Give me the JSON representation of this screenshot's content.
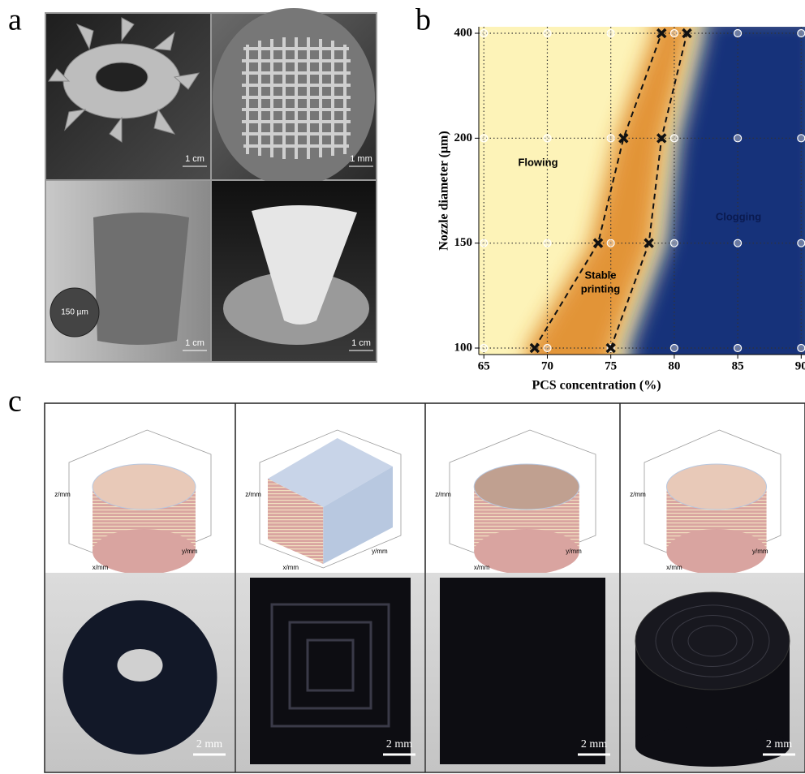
{
  "panel_labels": [
    "a",
    "b",
    "c"
  ],
  "panel_a": {
    "scale_bars": [
      "1 cm",
      "1 mm",
      "1 cm",
      "1 cm"
    ],
    "inset_label": "150 µm"
  },
  "chart_data": {
    "type": "line",
    "xlabel": "PCS concentration (%)",
    "ylabel": "Nozzle diameter (μm)",
    "xlim": [
      64.6,
      90.3
    ],
    "xticks": [
      65,
      70,
      75,
      80,
      85,
      90
    ],
    "y_categories": [
      100,
      150,
      200,
      400
    ],
    "grid": true,
    "annotations": {
      "flowing": "Flowing",
      "stable": [
        "Stable",
        "printing"
      ],
      "clogging": "Clogging"
    },
    "series": [
      {
        "color": "#111111",
        "x": [
          69,
          74,
          76,
          79
        ],
        "values": [
          100,
          150,
          200,
          400
        ]
      },
      {
        "color": "#111111",
        "x": [
          75,
          78,
          79,
          81
        ],
        "values": [
          100,
          150,
          200,
          400
        ]
      }
    ]
  },
  "panel_c": {
    "axis_labels": [
      "x/mm",
      "y/mm",
      "z/mm"
    ],
    "scale_bars": [
      "2 mm",
      "2 mm",
      "2 mm",
      "2 mm"
    ]
  }
}
